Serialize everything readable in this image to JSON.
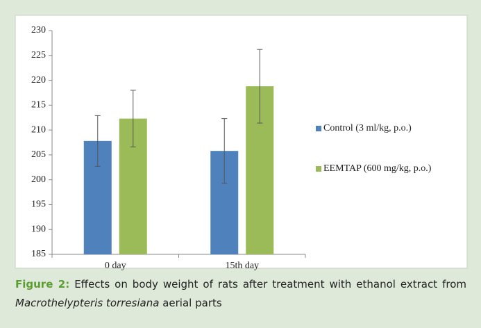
{
  "chart_data": {
    "type": "bar",
    "categories": [
      "0 day",
      "15th day"
    ],
    "series": [
      {
        "name": "Control (3 ml/kg, p.o.)",
        "color": "#4f81bd",
        "values": [
          207.8,
          205.8
        ],
        "errors": [
          5.1,
          6.5
        ]
      },
      {
        "name": "EEMTAP (600 mg/kg, p.o.)",
        "color": "#9bbb59",
        "values": [
          212.3,
          218.8
        ],
        "errors": [
          5.7,
          7.4
        ]
      }
    ],
    "ylim": [
      185,
      230
    ],
    "yticks": [
      185,
      190,
      195,
      200,
      205,
      210,
      215,
      220,
      225,
      230
    ],
    "legend": "right"
  },
  "caption": {
    "label": "Figure 2:",
    "text_before": "Effects on body weight of rats after treatment with ethanol extract from",
    "species": "Macrothelypteris torresiana",
    "text_after": "aerial parts"
  }
}
